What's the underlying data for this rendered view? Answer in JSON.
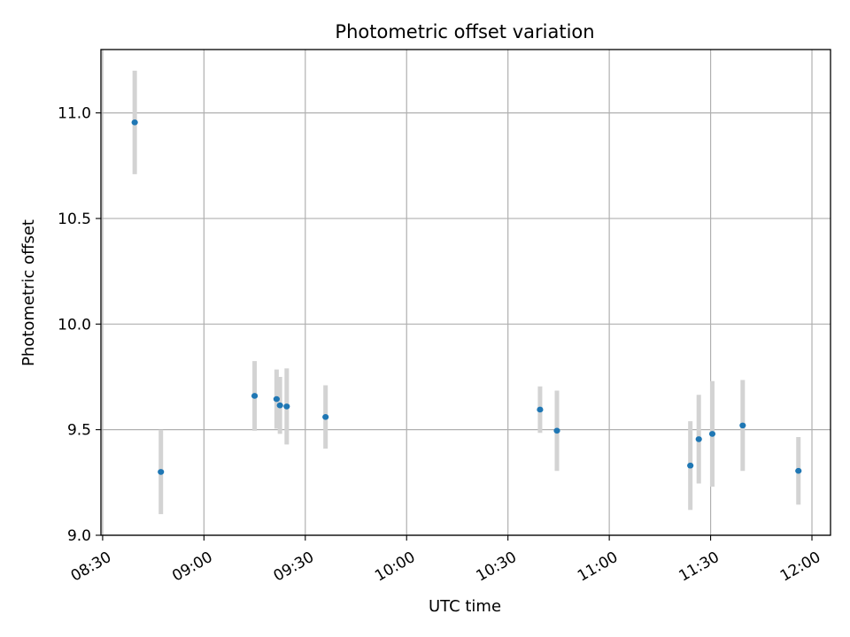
{
  "chart_data": {
    "type": "scatter",
    "title": "Photometric offset variation",
    "xlabel": "UTC time",
    "ylabel": "Photometric offset",
    "xlim_minutes": [
      509.5,
      725.5
    ],
    "ylim": [
      9.0,
      11.3
    ],
    "x_ticks": [
      {
        "minutes": 510,
        "label": "08:30"
      },
      {
        "minutes": 540,
        "label": "09:00"
      },
      {
        "minutes": 570,
        "label": "09:30"
      },
      {
        "minutes": 600,
        "label": "10:00"
      },
      {
        "minutes": 630,
        "label": "10:30"
      },
      {
        "minutes": 660,
        "label": "11:00"
      },
      {
        "minutes": 690,
        "label": "11:30"
      },
      {
        "minutes": 720,
        "label": "12:00"
      }
    ],
    "y_ticks": [
      {
        "value": 9.0,
        "label": "9.0"
      },
      {
        "value": 9.5,
        "label": "9.5"
      },
      {
        "value": 10.0,
        "label": "10.0"
      },
      {
        "value": 10.5,
        "label": "10.5"
      },
      {
        "value": 11.0,
        "label": "11.0"
      }
    ],
    "grid": true,
    "series": [
      {
        "name": "offset",
        "color": "#1f77b4",
        "errorbar_color": "#d3d3d3",
        "points": [
          {
            "time": "08:39:30",
            "minutes": 519.5,
            "y": 10.955,
            "err": 0.245
          },
          {
            "time": "08:47:15",
            "minutes": 527.25,
            "y": 9.3,
            "err": 0.2
          },
          {
            "time": "09:15:00",
            "minutes": 555.0,
            "y": 9.66,
            "err": 0.165
          },
          {
            "time": "09:21:30",
            "minutes": 561.5,
            "y": 9.645,
            "err": 0.14
          },
          {
            "time": "09:22:30",
            "minutes": 562.5,
            "y": 9.615,
            "err": 0.135
          },
          {
            "time": "09:24:30",
            "minutes": 564.5,
            "y": 9.61,
            "err": 0.18
          },
          {
            "time": "09:36:00",
            "minutes": 576.0,
            "y": 9.56,
            "err": 0.15
          },
          {
            "time": "10:39:30",
            "minutes": 639.5,
            "y": 9.595,
            "err": 0.11
          },
          {
            "time": "10:44:30",
            "minutes": 644.5,
            "y": 9.495,
            "err": 0.19
          },
          {
            "time": "11:24:00",
            "minutes": 684.0,
            "y": 9.33,
            "err": 0.21
          },
          {
            "time": "11:26:30",
            "minutes": 686.5,
            "y": 9.455,
            "err": 0.21
          },
          {
            "time": "11:30:30",
            "minutes": 690.5,
            "y": 9.48,
            "err": 0.25
          },
          {
            "time": "11:39:30",
            "minutes": 699.5,
            "y": 9.52,
            "err": 0.215
          },
          {
            "time": "11:56:00",
            "minutes": 716.0,
            "y": 9.305,
            "err": 0.16
          }
        ]
      }
    ]
  }
}
